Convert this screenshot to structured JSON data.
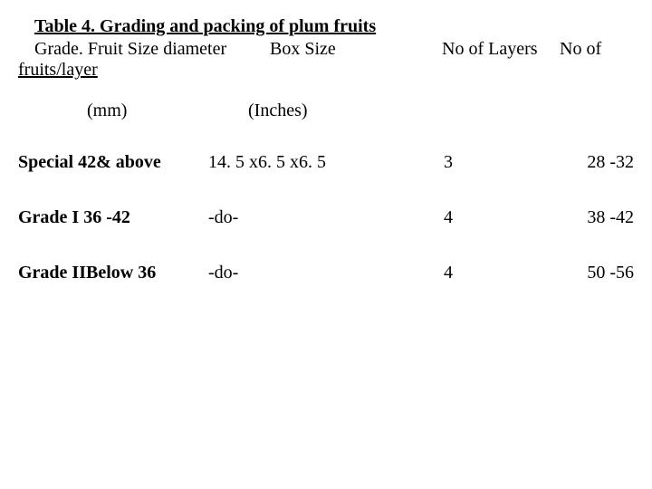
{
  "title": "Table 4. Grading and packing of plum fruits",
  "header": {
    "line1_c1": "Grade. Fruit Size diameter",
    "line1_c2": "Box Size",
    "line1_c3": "No of Layers",
    "line1_c4": "No of",
    "line2": "fruits/layer"
  },
  "subheader": {
    "s1": "(mm)",
    "s2": "(Inches)"
  },
  "rows": [
    {
      "grade": "Special  42& above",
      "box": "14. 5 x6. 5 x6. 5",
      "layers": "3",
      "fruits": "28 -32"
    },
    {
      "grade": "Grade I 36 -42",
      "box": "-do-",
      "layers": "4",
      "fruits": "38 -42"
    },
    {
      "grade": "Grade IIBelow 36",
      "box": "-do-",
      "layers": "4",
      "fruits": "50 -56"
    }
  ],
  "colors": {
    "text": "#000000",
    "background": "#ffffff"
  },
  "fonts": {
    "family": "Times New Roman",
    "title_size_pt": 15,
    "body_size_pt": 15
  }
}
